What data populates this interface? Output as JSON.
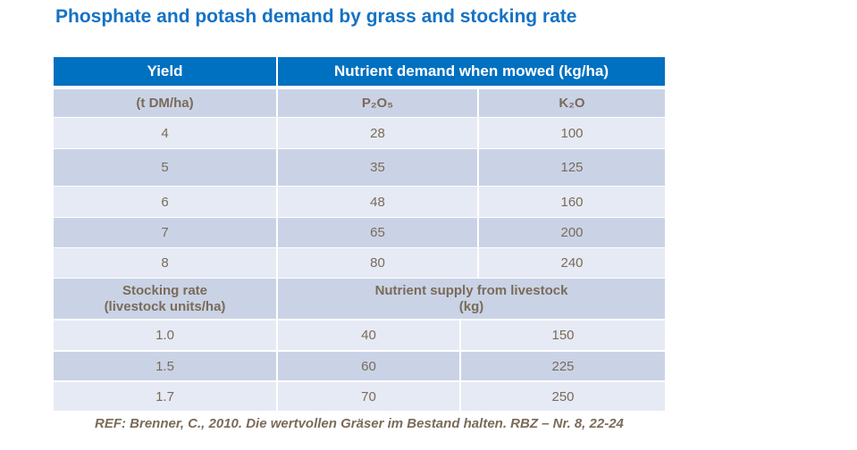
{
  "title": "Phosphate and potash demand by grass and stocking rate",
  "table": {
    "header": {
      "col1": "Yield",
      "col2": "Nutrient demand when mowed (kg/ha)"
    },
    "subheader": {
      "col1": "(t DM/ha)",
      "col2": "P₂O₅",
      "col3": "K₂O"
    },
    "yield_rows": [
      {
        "yield": "4",
        "p2o5": "28",
        "k2o": "100"
      },
      {
        "yield": "5",
        "p2o5": "35",
        "k2o": "125"
      },
      {
        "yield": "6",
        "p2o5": "48",
        "k2o": "160"
      },
      {
        "yield": "7",
        "p2o5": "65",
        "k2o": "200"
      },
      {
        "yield": "8",
        "p2o5": "80",
        "k2o": "240"
      }
    ],
    "stocking_header": {
      "col1": "Stocking rate\n(livestock units/ha)",
      "col2": "Nutrient supply from livestock\n(kg)"
    },
    "stocking_rows": [
      {
        "rate": "1.0",
        "p2o5": "40",
        "k2o": "150"
      },
      {
        "rate": "1.5",
        "p2o5": "60",
        "k2o": "225"
      },
      {
        "rate": "1.7",
        "p2o5": "70",
        "k2o": "250"
      }
    ]
  },
  "reference": "REF: Brenner, C., 2010. Die wertvollen Gräser im Bestand halten. RBZ – Nr. 8, 22-24",
  "colors": {
    "header": "#0070c0",
    "row_dark": "#cad3e6",
    "row_light": "#e6eaf4",
    "title": "#1472c4",
    "text": "#7a6b59"
  }
}
